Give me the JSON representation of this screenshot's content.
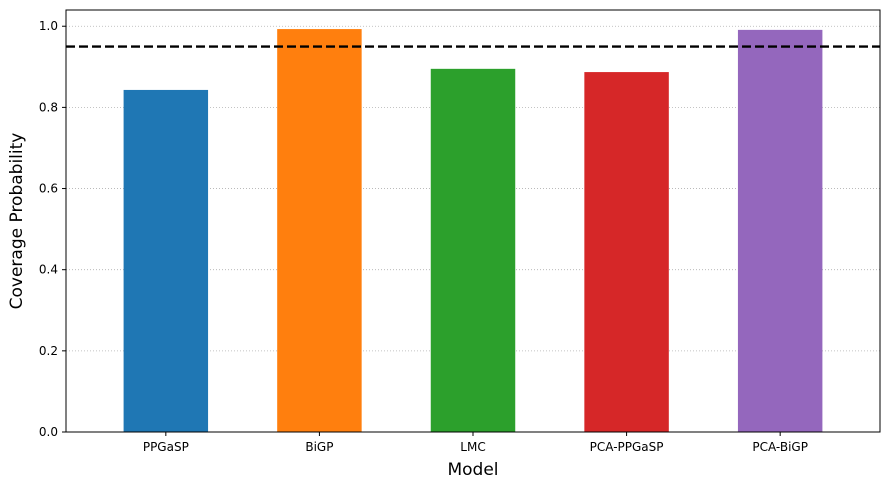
{
  "chart_data": {
    "type": "bar",
    "title": "",
    "xlabel": "Model",
    "ylabel": "Coverage Probability",
    "categories": [
      "PPGaSP",
      "BiGP",
      "LMC",
      "PCA-PPGaSP",
      "PCA-BiGP"
    ],
    "values": [
      0.843,
      0.993,
      0.895,
      0.887,
      0.991
    ],
    "colors": [
      "#1f77b4",
      "#ff7f0e",
      "#2ca02c",
      "#d62728",
      "#9467bd"
    ],
    "ylim": [
      0.0,
      1.04
    ],
    "yticks": [
      "0.0",
      "0.2",
      "0.4",
      "0.6",
      "0.8",
      "1.0"
    ],
    "ytick_values": [
      0.0,
      0.2,
      0.4,
      0.6,
      0.8,
      1.0
    ],
    "reference_line": {
      "value": 0.95,
      "style": "dashed",
      "color": "#000000"
    },
    "grid": {
      "y": true,
      "style": "dotted",
      "color": "#b0b0b0"
    },
    "legend": "none"
  }
}
